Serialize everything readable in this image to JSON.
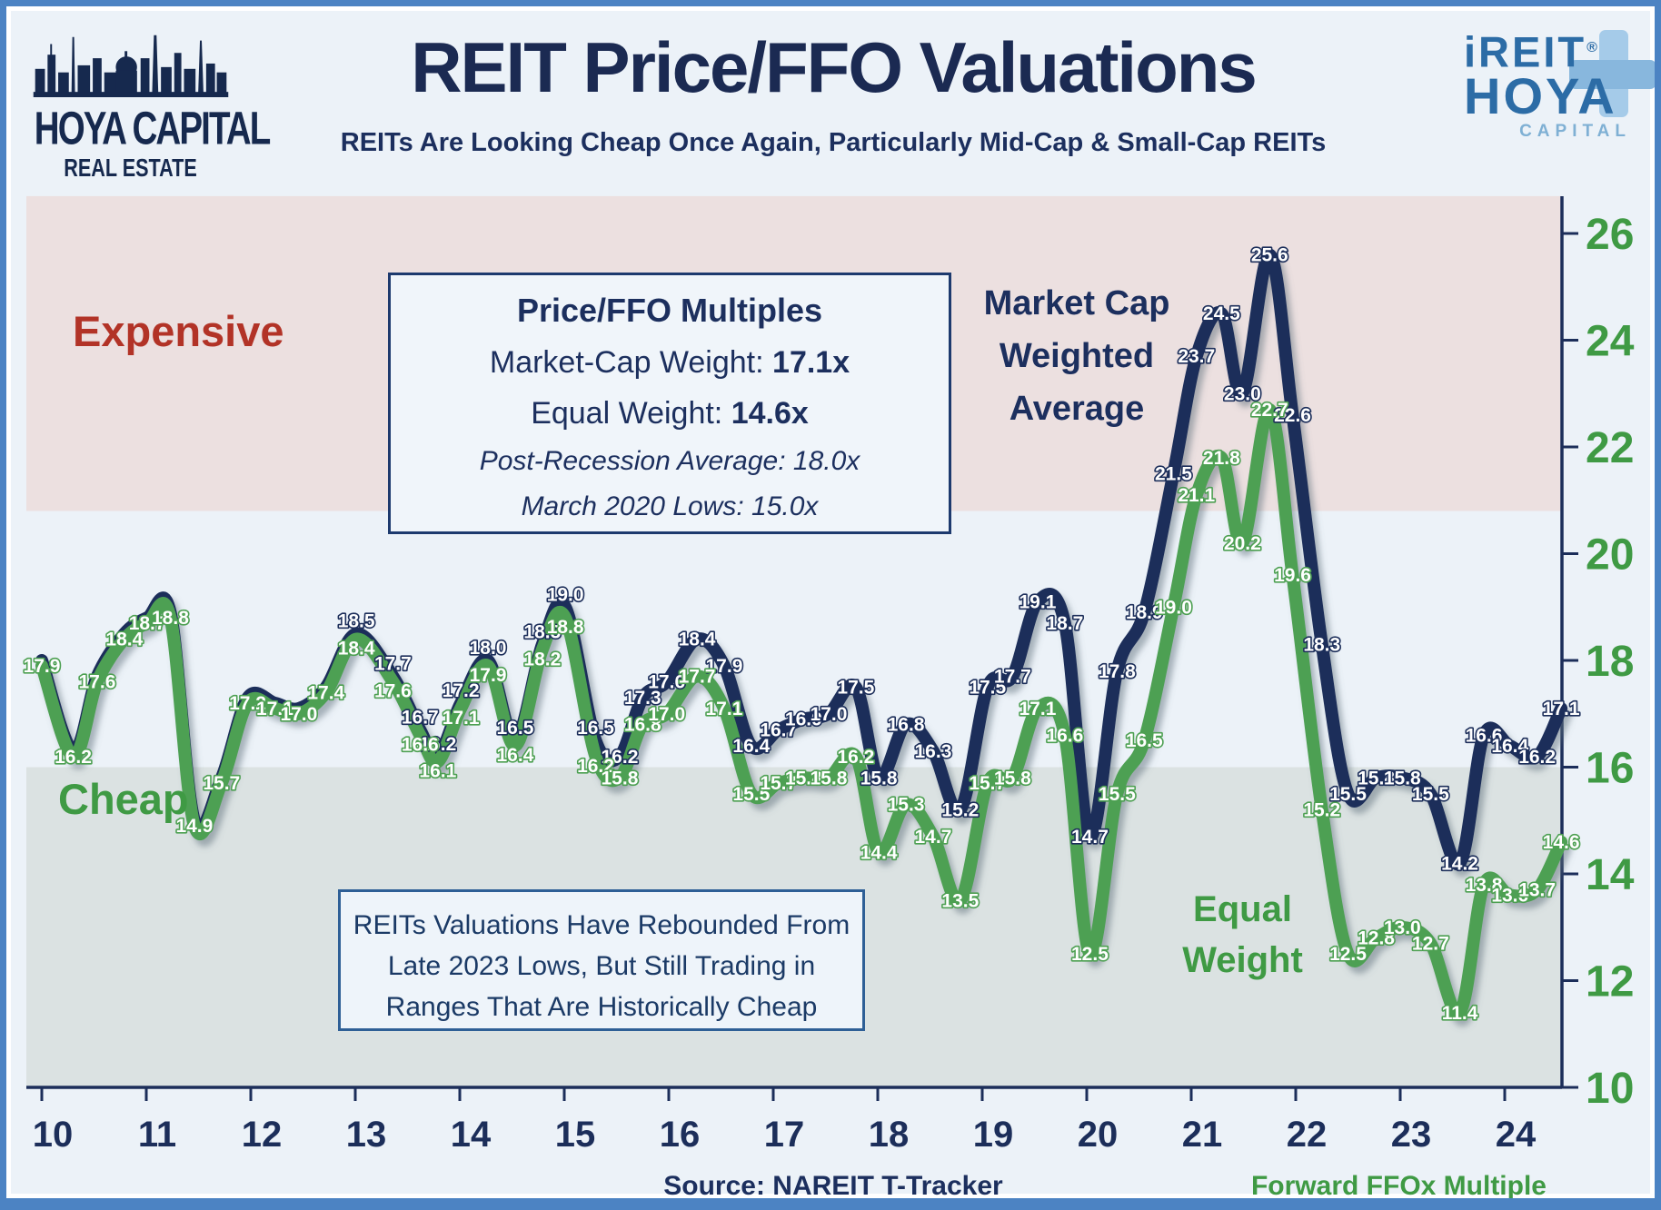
{
  "header": {
    "logo_left": {
      "line1": "HOYA CAPITAL",
      "line2": "REAL ESTATE"
    },
    "title": "REIT Price/FFO Valuations",
    "subtitle": "REITs Are Looking Cheap Once Again, Particularly Mid-Cap & Small-Cap REITs",
    "logo_right": {
      "line1": "iREIT",
      "reg": "®",
      "line2": "HOYA",
      "line3": "CAPITAL"
    }
  },
  "info_box": {
    "title": "Price/FFO Multiples",
    "line1_label": "Market-Cap Weight: ",
    "line1_value": "17.1x",
    "line2_label": "Equal Weight: ",
    "line2_value": "14.6x",
    "line3": "Post-Recession Average: 18.0x",
    "line4": "March 2020 Lows: 15.0x"
  },
  "zone_labels": {
    "expensive": "Expensive",
    "cheap": "Cheap"
  },
  "series_annotations": {
    "market_cap": [
      "Market Cap",
      "Weighted",
      "Average"
    ],
    "equal_weight": [
      "Equal",
      "Weight"
    ]
  },
  "annotation_box": {
    "line1": "REITs Valuations Have Rebounded From",
    "line2": "Late 2023 Lows, But Still Trading in",
    "line3": "Ranges That Are Historically Cheap"
  },
  "footer": {
    "source": "Source: NAREIT T-Tracker",
    "axis_note": "Forward FFOx Multiple"
  },
  "colors": {
    "navy": "#1c2e5a",
    "green": "#4da052",
    "text_green": "#3f9a44",
    "red": "#b23327",
    "band_expensive": "#ece0e0",
    "band_cheap": "#dbe2e2",
    "frame_blue": "#4c83c3",
    "page_bg": "#ecf2f8",
    "box_bg": "#f0f5fa"
  },
  "chart_data": {
    "type": "line",
    "title": "REIT Price/FFO Valuations",
    "ylabel": "Forward FFOx Multiple",
    "x_ticks": [
      10,
      11,
      12,
      13,
      14,
      15,
      16,
      17,
      18,
      19,
      20,
      21,
      22,
      23,
      24
    ],
    "y_ticks": [
      10,
      12,
      14,
      16,
      18,
      20,
      22,
      24,
      26
    ],
    "xlim": [
      9.85,
      24.7
    ],
    "ylim": [
      10,
      26.7
    ],
    "bands": {
      "expensive_from": 20.8,
      "expensive_to": 26.7,
      "cheap_from": 10,
      "cheap_to": 16
    },
    "legend_position": "on-chart",
    "grid": false,
    "series": [
      {
        "name": "Market Cap Weighted Average",
        "color": "#1c2e5a",
        "points": [
          [
            10.0,
            18.0,
            0
          ],
          [
            10.3,
            16.3,
            0
          ],
          [
            10.53,
            17.7,
            0
          ],
          [
            10.79,
            18.5,
            0
          ],
          [
            11.01,
            18.8,
            0
          ],
          [
            11.23,
            18.9,
            0
          ],
          [
            11.46,
            15.0,
            0
          ],
          [
            11.72,
            15.8,
            0
          ],
          [
            11.97,
            17.3,
            0
          ],
          [
            12.23,
            17.2,
            0
          ],
          [
            12.46,
            17.1,
            0
          ],
          [
            12.72,
            17.5,
            0
          ],
          [
            13.01,
            18.5
          ],
          [
            13.36,
            17.7
          ],
          [
            13.62,
            16.7
          ],
          [
            13.79,
            16.2
          ],
          [
            14.01,
            17.2
          ],
          [
            14.27,
            18.0
          ],
          [
            14.53,
            16.5
          ],
          [
            14.79,
            18.3
          ],
          [
            15.01,
            19.0
          ],
          [
            15.3,
            16.5
          ],
          [
            15.53,
            16.2
          ],
          [
            15.75,
            17.3
          ],
          [
            15.98,
            17.6
          ],
          [
            16.27,
            18.4
          ],
          [
            16.53,
            17.9
          ],
          [
            16.79,
            16.4
          ],
          [
            17.05,
            16.7
          ],
          [
            17.29,
            16.9
          ],
          [
            17.53,
            17.0
          ],
          [
            17.79,
            17.5
          ],
          [
            18.01,
            15.8
          ],
          [
            18.27,
            16.8
          ],
          [
            18.53,
            16.3
          ],
          [
            18.79,
            15.2
          ],
          [
            19.05,
            17.5
          ],
          [
            19.29,
            17.7
          ],
          [
            19.53,
            19.1
          ],
          [
            19.79,
            18.7
          ],
          [
            20.03,
            14.7
          ],
          [
            20.29,
            17.8
          ],
          [
            20.55,
            18.9
          ],
          [
            20.83,
            21.5
          ],
          [
            21.05,
            23.7
          ],
          [
            21.29,
            24.5
          ],
          [
            21.49,
            23.0
          ],
          [
            21.75,
            25.6
          ],
          [
            21.97,
            22.6
          ],
          [
            22.25,
            18.3
          ],
          [
            22.5,
            15.5
          ],
          [
            22.77,
            15.8
          ],
          [
            23.02,
            15.8
          ],
          [
            23.29,
            15.5
          ],
          [
            23.57,
            14.2
          ],
          [
            23.8,
            16.6
          ],
          [
            24.05,
            16.4
          ],
          [
            24.31,
            16.2
          ],
          [
            24.54,
            17.1
          ]
        ]
      },
      {
        "name": "Equal Weight",
        "color": "#4da052",
        "points": [
          [
            10.0,
            17.9
          ],
          [
            10.3,
            16.2
          ],
          [
            10.53,
            17.6
          ],
          [
            10.79,
            18.4
          ],
          [
            11.01,
            18.7
          ],
          [
            11.23,
            18.8
          ],
          [
            11.46,
            14.9
          ],
          [
            11.72,
            15.7
          ],
          [
            11.97,
            17.2
          ],
          [
            12.23,
            17.1
          ],
          [
            12.46,
            17.0
          ],
          [
            12.72,
            17.4
          ],
          [
            13.01,
            18.4
          ],
          [
            13.36,
            17.6
          ],
          [
            13.62,
            16.6
          ],
          [
            13.79,
            16.1
          ],
          [
            14.01,
            17.1
          ],
          [
            14.27,
            17.9
          ],
          [
            14.53,
            16.4
          ],
          [
            14.79,
            18.2
          ],
          [
            15.01,
            18.8
          ],
          [
            15.3,
            16.2
          ],
          [
            15.53,
            15.8
          ],
          [
            15.75,
            16.8
          ],
          [
            15.98,
            17.0
          ],
          [
            16.27,
            17.7
          ],
          [
            16.53,
            17.1
          ],
          [
            16.79,
            15.5
          ],
          [
            17.05,
            15.7
          ],
          [
            17.29,
            15.8
          ],
          [
            17.53,
            15.8
          ],
          [
            17.79,
            16.2
          ],
          [
            18.01,
            14.4
          ],
          [
            18.27,
            15.3
          ],
          [
            18.53,
            14.7
          ],
          [
            18.79,
            13.5
          ],
          [
            19.05,
            15.7
          ],
          [
            19.29,
            15.8
          ],
          [
            19.53,
            17.1
          ],
          [
            19.79,
            16.6
          ],
          [
            20.03,
            12.5
          ],
          [
            20.29,
            15.5
          ],
          [
            20.55,
            16.5
          ],
          [
            20.83,
            19.0
          ],
          [
            21.05,
            21.1
          ],
          [
            21.29,
            21.8
          ],
          [
            21.49,
            20.2
          ],
          [
            21.75,
            22.7
          ],
          [
            21.97,
            19.6
          ],
          [
            22.25,
            15.2
          ],
          [
            22.5,
            12.5
          ],
          [
            22.77,
            12.8
          ],
          [
            23.02,
            13.0
          ],
          [
            23.29,
            12.7
          ],
          [
            23.57,
            11.4
          ],
          [
            23.8,
            13.8
          ],
          [
            24.05,
            13.6
          ],
          [
            24.31,
            13.7
          ],
          [
            24.54,
            14.6
          ]
        ]
      }
    ]
  }
}
